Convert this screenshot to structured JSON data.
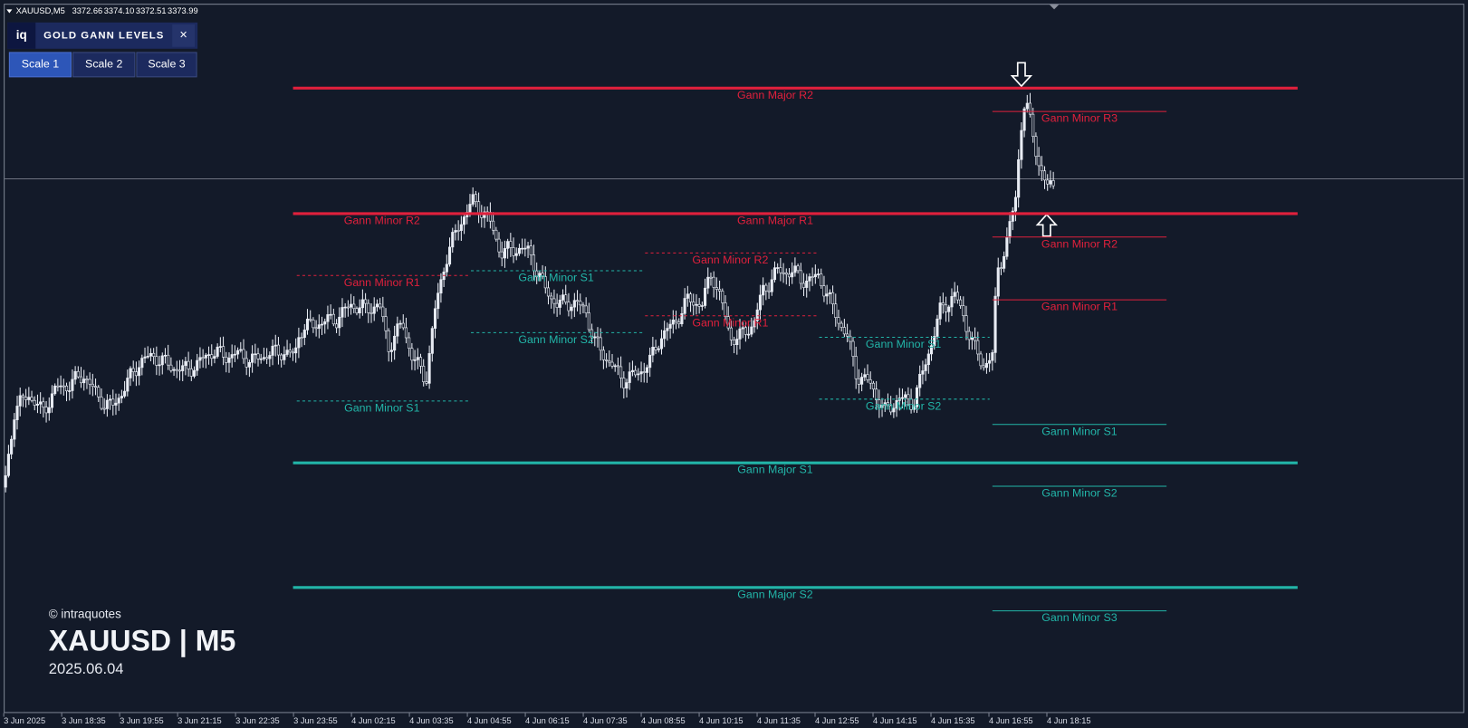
{
  "header": {
    "symbol": "XAUUSD,M5",
    "open": "3372.66",
    "high": "3374.10",
    "low": "3372.51",
    "close": "3373.99"
  },
  "panel": {
    "logo": "iq",
    "title": "GOLD GANN LEVELS",
    "close": "×",
    "buttons": [
      "Scale 1",
      "Scale 2",
      "Scale 3"
    ]
  },
  "major_levels": [
    "Gann Major R2",
    "Gann Major R1",
    "Gann Major S1",
    "Gann Major S2"
  ],
  "minor_levels": {
    "block1": [
      "Gann Minor R2",
      "Gann Minor R1",
      "Gann Minor S1"
    ],
    "block2": [
      "Gann Minor S1",
      "Gann Minor S2"
    ],
    "block3": [
      "Gann Minor R2",
      "Gann Minor R1"
    ],
    "block4": [
      "Gann Minor S1",
      "Gann Minor S2"
    ],
    "block5": [
      "Gann Minor R3",
      "Gann Minor R2",
      "Gann Minor R1",
      "Gann Minor S1",
      "Gann Minor S2",
      "Gann Minor S3"
    ]
  },
  "watermark": {
    "copyright": "© intraquotes",
    "symbol": "XAUUSD | M5",
    "date": "2025.06.04"
  },
  "time_axis": [
    "3 Jun 2025",
    "3 Jun 18:35",
    "3 Jun 19:55",
    "3 Jun 21:15",
    "3 Jun 22:35",
    "3 Jun 23:55",
    "4 Jun 02:15",
    "4 Jun 03:35",
    "4 Jun 04:55",
    "4 Jun 06:15",
    "4 Jun 07:35",
    "4 Jun 08:55",
    "4 Jun 10:15",
    "4 Jun 11:35",
    "4 Jun 12:55",
    "4 Jun 14:15",
    "4 Jun 15:35",
    "4 Jun 16:55",
    "4 Jun 18:15"
  ]
}
